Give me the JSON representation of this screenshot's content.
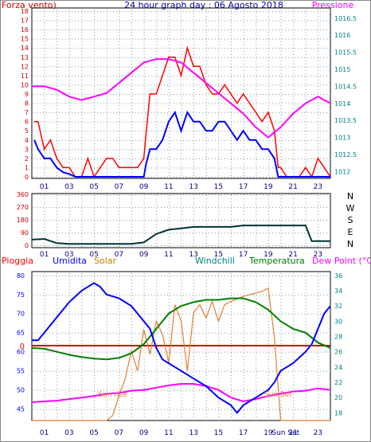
{
  "chart_data": [
    {
      "type": "line",
      "title": "24 hour graph day : 06 Agosto 2018",
      "left_label": "Forza vento)",
      "right_label": "Pressione",
      "x_ticks": [
        "01",
        "03",
        "05",
        "07",
        "09",
        "11",
        "13",
        "15",
        "17",
        "19",
        "21",
        "23"
      ],
      "y_left_ticks": [
        "0",
        "1",
        "2",
        "3",
        "4",
        "5",
        "6",
        "7",
        "8",
        "9",
        "10",
        "11",
        "12",
        "13",
        "14",
        "15",
        "16",
        "17",
        "18"
      ],
      "y_right_ticks": [
        "1012",
        "1012.5",
        "1013",
        "1013.5",
        "1014",
        "1014.5",
        "1015",
        "1015.5",
        "1016",
        "1016.5"
      ],
      "ylim_left": [
        0,
        18
      ],
      "ylim_right": [
        1011.8,
        1016.8
      ],
      "colors": {
        "gust": "#ff0000",
        "wind": "#0000ff",
        "pressure": "#ff00ff",
        "left_axis": "#cc0000",
        "right_axis": "#008080"
      },
      "series": [
        {
          "kind": "gust",
          "hours": [
            0.2,
            0.5,
            1,
            1.5,
            2,
            2.5,
            3,
            3.5,
            4,
            4.5,
            5,
            5.5,
            6,
            6.5,
            7,
            7.5,
            8,
            8.5,
            9,
            9.2,
            9.5,
            10,
            10.5,
            11,
            11.5,
            12,
            12.5,
            13,
            13.5,
            14,
            14.5,
            15,
            15.5,
            16,
            16.5,
            17,
            17.5,
            18,
            18.5,
            19,
            19.5,
            19.8,
            20,
            20.5,
            21,
            21.5,
            22,
            22.5,
            23,
            23.5,
            24
          ],
          "values": [
            6,
            6,
            3,
            4,
            2,
            1,
            1,
            0,
            0,
            2,
            0,
            1,
            2,
            2,
            1,
            1,
            1,
            1,
            2,
            5,
            9,
            9,
            11,
            13,
            13,
            11,
            14,
            12,
            12,
            10,
            9,
            9,
            10,
            9,
            8,
            9,
            8,
            7,
            6,
            7,
            5,
            1,
            1,
            0,
            0,
            0,
            1,
            0,
            2,
            1,
            0
          ]
        },
        {
          "kind": "wind",
          "hours": [
            0.2,
            0.5,
            1,
            1.5,
            2,
            2.5,
            3,
            3.5,
            4,
            4.5,
            5,
            5.5,
            6,
            6.5,
            7,
            7.5,
            8,
            8.5,
            9,
            9.2,
            9.5,
            10,
            10.5,
            11,
            11.5,
            12,
            12.5,
            13,
            13.5,
            14,
            14.5,
            15,
            15.5,
            16,
            16.5,
            17,
            17.5,
            18,
            18.5,
            19,
            19.5,
            19.8,
            20,
            20.5,
            21,
            21.5,
            22,
            22.5,
            23,
            23.5,
            24
          ],
          "values": [
            4,
            3,
            2,
            2,
            1,
            0.5,
            0.3,
            0,
            0,
            0,
            0,
            0,
            0,
            0,
            0,
            0,
            0,
            0,
            0,
            1.5,
            3,
            3,
            4,
            6,
            7,
            5,
            7,
            6,
            6,
            5,
            5,
            6,
            6,
            5,
            4,
            5,
            4,
            4,
            3,
            3,
            2,
            0,
            0,
            0,
            0,
            0,
            0,
            0,
            0,
            0,
            0
          ]
        },
        {
          "kind": "pressure",
          "hours": [
            0,
            1,
            2,
            3,
            4,
            5,
            6,
            7,
            8,
            9,
            10,
            11,
            12,
            13,
            14,
            15,
            16,
            17,
            18,
            19,
            20,
            21,
            22,
            23,
            23.5,
            24
          ],
          "values": [
            1014.5,
            1014.5,
            1014.4,
            1014.2,
            1014.1,
            1014.2,
            1014.3,
            1014.6,
            1014.9,
            1015.2,
            1015.3,
            1015.3,
            1015.2,
            1014.9,
            1014.6,
            1014.3,
            1014.0,
            1013.7,
            1013.3,
            1013.0,
            1013.3,
            1013.7,
            1014.0,
            1014.2,
            1014.1,
            1014.0
          ]
        }
      ]
    },
    {
      "type": "line",
      "title": "",
      "x_ticks": [
        "01",
        "03",
        "05",
        "07",
        "09",
        "11",
        "13",
        "15",
        "17",
        "19",
        "21",
        "23"
      ],
      "y_ticks": [
        "0",
        "90",
        "180",
        "270",
        "360"
      ],
      "ylim": [
        0,
        360
      ],
      "compass": [
        "N",
        "W",
        "S",
        "E",
        "N"
      ],
      "colors": {
        "direction": "#003333",
        "axis": "#cc0000"
      },
      "series": [
        {
          "kind": "direction",
          "hours": [
            0,
            1,
            2,
            3,
            4,
            5,
            6,
            7,
            8,
            9,
            10,
            11,
            12,
            13,
            14,
            15,
            16,
            17,
            18,
            19,
            20,
            21,
            22,
            22.5,
            23,
            24
          ],
          "values": [
            40,
            45,
            15,
            10,
            10,
            10,
            10,
            10,
            10,
            20,
            80,
            110,
            120,
            130,
            130,
            130,
            130,
            140,
            140,
            140,
            140,
            140,
            140,
            30,
            30,
            30
          ]
        }
      ]
    },
    {
      "type": "line",
      "title": "",
      "labels": {
        "rain": "Pioggia",
        "humidity": "Umidita",
        "solar": "Solar",
        "windchill": "Windchill",
        "temperature": "Temperatura",
        "dewpoint": "Dew Point (°C)"
      },
      "x_ticks": [
        "01",
        "03",
        "05",
        "07",
        "09",
        "11",
        "13",
        "15",
        "17",
        "19",
        "Sun Set",
        "21",
        "23"
      ],
      "y_left_ticks": [
        "45",
        "50",
        "55",
        "60",
        "65",
        "70",
        "75",
        "80"
      ],
      "y_right_ticks": [
        "18",
        "20",
        "22",
        "24",
        "26",
        "28",
        "30",
        "32",
        "34",
        "36"
      ],
      "rain_value_label": "0",
      "annotations": [
        {
          "text": "Sun rise",
          "hour": 6.5
        },
        {
          "text": "Sun Set",
          "hour": 19.8
        }
      ],
      "ylim_left": [
        42,
        81
      ],
      "ylim_right": [
        17,
        36.5
      ],
      "colors": {
        "humidity": "#0000ff",
        "solar": "#e08030",
        "windchill": "#008000",
        "temperature": "#008000",
        "dewpoint": "#ff00ff",
        "rain": "#cc0000",
        "rain_label": "#ff0000",
        "humidity_label": "#0000ff",
        "solar_label": "#c08000",
        "windchill_label": "#008080",
        "temperature_label": "#008000",
        "dewpoint_label": "#ff00ff",
        "right_axis": "#008080"
      },
      "series": [
        {
          "kind": "humidity",
          "hours": [
            0,
            0.5,
            1,
            2,
            3,
            4,
            4.5,
            5,
            5.5,
            6,
            7,
            8,
            8.5,
            9,
            9.5,
            10,
            10.5,
            11,
            12,
            13,
            14,
            15,
            16,
            16.5,
            17,
            18,
            19,
            19.5,
            20,
            21,
            22,
            22.5,
            23,
            23.5,
            24
          ],
          "values": [
            63,
            63,
            65,
            69,
            73,
            76,
            77,
            78,
            77,
            75,
            74,
            72,
            70,
            68,
            66,
            61,
            58,
            57,
            55,
            53,
            51,
            48,
            46,
            44,
            46,
            48,
            50,
            52,
            55,
            57,
            60,
            62,
            66,
            70,
            72
          ]
        },
        {
          "kind": "temperature",
          "hours": [
            0,
            1,
            2,
            3,
            4,
            5,
            6,
            7,
            8,
            9,
            10,
            11,
            12,
            13,
            14,
            15,
            16,
            17,
            18,
            19,
            20,
            21,
            22,
            23,
            24
          ],
          "values": [
            26.5,
            26.4,
            26,
            25.6,
            25.3,
            25.1,
            25,
            25.2,
            25.8,
            27,
            29,
            31,
            32,
            32.5,
            32.8,
            32.8,
            33,
            33,
            32.5,
            31.5,
            30,
            29,
            28.5,
            27.2,
            26.5
          ]
        },
        {
          "kind": "solar",
          "hours": [
            0,
            6,
            6.5,
            7,
            7.5,
            8,
            8.5,
            9,
            9.5,
            10,
            10.5,
            11,
            11.5,
            12,
            12.5,
            13,
            13.5,
            14,
            14.5,
            15,
            15.5,
            16,
            17,
            18,
            18.5,
            19,
            19.5,
            20,
            24
          ],
          "values": [
            0,
            0,
            30,
            150,
            250,
            420,
            300,
            550,
            400,
            600,
            520,
            350,
            700,
            600,
            300,
            650,
            700,
            620,
            720,
            600,
            700,
            720,
            750,
            770,
            780,
            800,
            500,
            0,
            0
          ]
        },
        {
          "kind": "dewpoint",
          "hours": [
            0,
            1,
            2,
            3,
            4,
            5,
            6,
            7,
            8,
            9,
            10,
            11,
            12,
            13,
            14,
            15,
            16,
            17,
            18,
            19,
            20,
            21,
            22,
            23,
            24
          ],
          "values": [
            19.4,
            19.5,
            19.6,
            19.8,
            20,
            20.2,
            20.5,
            20.6,
            20.9,
            21,
            21.3,
            21.6,
            21.8,
            21.8,
            21.5,
            21,
            20,
            19.5,
            19.8,
            20.2,
            20.5,
            20.8,
            20.9,
            21.2,
            21
          ]
        }
      ]
    }
  ]
}
